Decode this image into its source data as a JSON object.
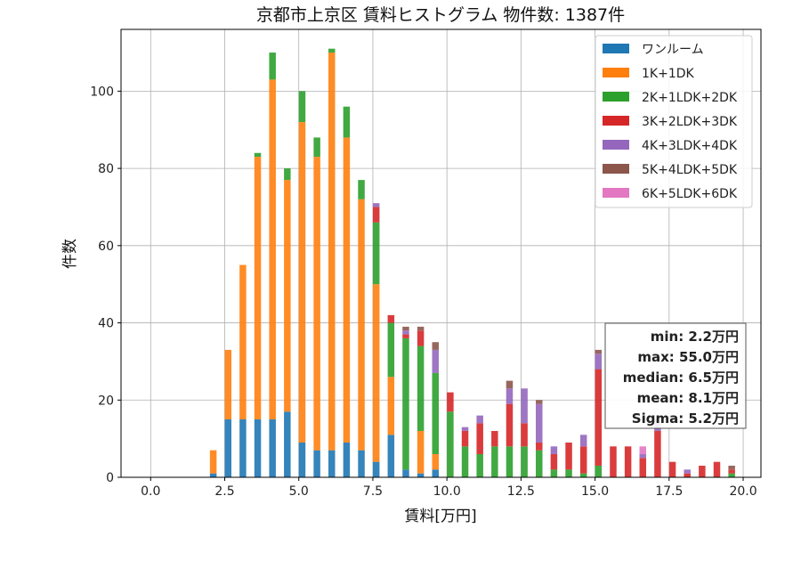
{
  "chart_data": {
    "type": "bar",
    "stacked": true,
    "title": "京都市上京区 賃料ヒストグラム  物件数: 1387件",
    "xlabel": "賃料[万円]",
    "ylabel": "件数",
    "xlim": [
      -1.0,
      20.6
    ],
    "ylim": [
      0,
      116
    ],
    "xticks": [
      "0.0",
      "2.5",
      "5.0",
      "7.5",
      "10.0",
      "12.5",
      "15.0",
      "17.5",
      "20.0"
    ],
    "yticks": [
      "0",
      "20",
      "40",
      "60",
      "80",
      "100"
    ],
    "grid": true,
    "legend_position": "top-right",
    "bin_width": 0.25,
    "x": [
      2.0,
      2.25,
      2.5,
      2.75,
      3.0,
      3.25,
      3.5,
      3.75,
      4.0,
      4.25,
      4.5,
      4.75,
      5.0,
      5.25,
      5.5,
      5.75,
      6.0,
      6.25,
      6.5,
      6.75,
      7.0,
      7.25,
      7.5,
      7.75,
      8.0,
      8.25,
      8.5,
      8.75,
      9.0,
      9.25,
      9.5,
      9.75,
      10.0,
      10.25,
      10.5,
      10.75,
      11.0,
      11.25,
      11.5,
      11.75,
      12.0,
      12.25,
      12.5,
      12.75,
      13.0,
      13.25,
      13.5,
      13.75,
      14.0,
      14.25,
      14.5,
      14.75,
      15.0,
      15.25,
      15.5,
      15.75,
      16.0,
      16.25,
      16.5,
      16.75,
      17.0,
      17.25,
      17.5,
      17.75,
      18.0,
      18.25,
      18.5,
      18.75,
      19.0,
      19.25,
      19.5,
      19.75
    ],
    "series": [
      {
        "name": "ワンルーム",
        "color": "#1f77b4",
        "values": [
          1,
          0,
          15,
          0,
          15,
          0,
          15,
          0,
          15,
          0,
          17,
          0,
          9,
          0,
          7,
          0,
          7,
          0,
          9,
          0,
          7,
          0,
          4,
          0,
          11,
          0,
          2,
          0,
          1,
          0,
          2,
          0,
          0,
          0,
          0,
          0,
          0,
          0,
          0,
          0,
          0,
          0,
          0,
          0,
          0,
          0,
          0,
          0,
          0,
          0,
          0,
          0,
          0,
          0,
          0,
          0,
          0,
          0,
          0,
          0,
          0,
          0,
          0,
          0,
          0,
          0,
          0,
          0,
          0,
          0,
          0,
          0
        ]
      },
      {
        "name": "1K+1DK",
        "color": "#ff7f0e",
        "values": [
          6,
          0,
          18,
          0,
          40,
          0,
          68,
          0,
          88,
          0,
          60,
          0,
          83,
          0,
          76,
          0,
          103,
          0,
          79,
          0,
          65,
          0,
          46,
          0,
          15,
          0,
          0,
          0,
          11,
          0,
          4,
          0,
          0,
          0,
          0,
          0,
          0,
          0,
          0,
          0,
          0,
          0,
          0,
          0,
          0,
          0,
          0,
          0,
          0,
          0,
          0,
          0,
          0,
          0,
          0,
          0,
          0,
          0,
          0,
          0,
          0,
          0,
          0,
          0,
          0,
          0,
          0,
          0,
          0,
          0,
          0,
          0
        ]
      },
      {
        "name": "2K+1LDK+2DK",
        "color": "#2ca02c",
        "values": [
          0,
          0,
          0,
          0,
          0,
          0,
          1,
          0,
          7,
          0,
          3,
          0,
          8,
          0,
          5,
          0,
          1,
          0,
          8,
          0,
          5,
          0,
          16,
          0,
          14,
          0,
          34,
          0,
          22,
          0,
          21,
          0,
          17,
          0,
          8,
          0,
          6,
          0,
          8,
          0,
          8,
          0,
          8,
          0,
          7,
          0,
          2,
          0,
          2,
          0,
          1,
          0,
          3,
          0,
          0,
          0,
          0,
          0,
          0,
          0,
          0,
          0,
          0,
          0,
          0,
          0,
          0,
          0,
          0,
          0,
          1,
          0
        ]
      },
      {
        "name": "3K+2LDK+3DK",
        "color": "#d62728",
        "values": [
          0,
          0,
          0,
          0,
          0,
          0,
          0,
          0,
          0,
          0,
          0,
          0,
          0,
          0,
          0,
          0,
          0,
          0,
          0,
          0,
          0,
          0,
          4,
          0,
          2,
          0,
          1,
          0,
          4,
          0,
          0,
          0,
          5,
          0,
          4,
          0,
          8,
          0,
          4,
          0,
          11,
          0,
          6,
          0,
          2,
          0,
          4,
          0,
          7,
          0,
          7,
          0,
          25,
          0,
          8,
          0,
          8,
          0,
          5,
          0,
          12,
          0,
          4,
          0,
          1,
          0,
          3,
          0,
          4,
          0,
          1,
          0
        ]
      },
      {
        "name": "4K+3LDK+4DK",
        "color": "#9467bd",
        "values": [
          0,
          0,
          0,
          0,
          0,
          0,
          0,
          0,
          0,
          0,
          0,
          0,
          0,
          0,
          0,
          0,
          0,
          0,
          0,
          0,
          0,
          0,
          1,
          0,
          0,
          0,
          1,
          0,
          0,
          0,
          6,
          0,
          0,
          0,
          1,
          0,
          2,
          0,
          0,
          0,
          4,
          0,
          9,
          0,
          10,
          0,
          2,
          0,
          0,
          0,
          3,
          0,
          4,
          0,
          0,
          0,
          0,
          0,
          1,
          0,
          3,
          0,
          0,
          0,
          1,
          0,
          0,
          0,
          0,
          0,
          0,
          0
        ]
      },
      {
        "name": "5K+4LDK+5DK",
        "color": "#8c564b",
        "values": [
          0,
          0,
          0,
          0,
          0,
          0,
          0,
          0,
          0,
          0,
          0,
          0,
          0,
          0,
          0,
          0,
          0,
          0,
          0,
          0,
          0,
          0,
          0,
          0,
          0,
          0,
          1,
          0,
          1,
          0,
          2,
          0,
          0,
          0,
          0,
          0,
          0,
          0,
          0,
          0,
          2,
          0,
          0,
          0,
          1,
          0,
          0,
          0,
          0,
          0,
          0,
          0,
          1,
          0,
          0,
          0,
          0,
          0,
          0,
          0,
          0,
          0,
          0,
          0,
          0,
          0,
          0,
          0,
          0,
          0,
          1,
          0
        ]
      },
      {
        "name": "6K+5LDK+6DK",
        "color": "#e377c2",
        "values": [
          0,
          0,
          0,
          0,
          0,
          0,
          0,
          0,
          0,
          0,
          0,
          0,
          0,
          0,
          0,
          0,
          0,
          0,
          0,
          0,
          0,
          0,
          0,
          0,
          0,
          0,
          0,
          0,
          0,
          0,
          0,
          0,
          0,
          0,
          0,
          0,
          0,
          0,
          0,
          0,
          0,
          0,
          0,
          0,
          0,
          0,
          0,
          0,
          0,
          0,
          0,
          0,
          0,
          0,
          0,
          0,
          0,
          0,
          2,
          0,
          0,
          0,
          0,
          0,
          0,
          0,
          0,
          0,
          0,
          0,
          0,
          0
        ]
      }
    ],
    "stats": {
      "min": "min: 2.2万円",
      "max": "max: 55.0万円",
      "median": "median: 6.5万円",
      "mean": "mean: 8.1万円",
      "sigma": "Sigma: 5.2万円"
    }
  }
}
